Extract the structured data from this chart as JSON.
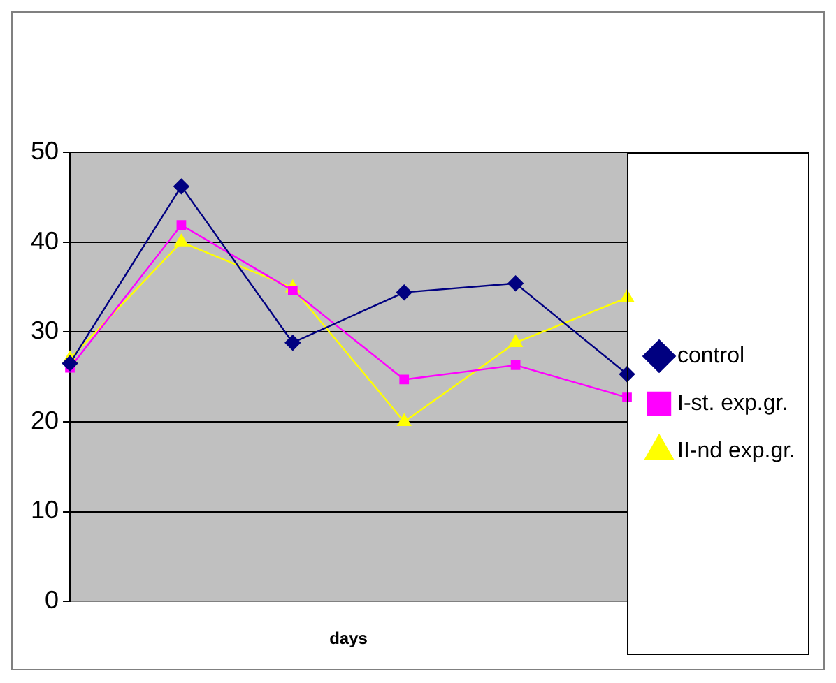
{
  "chart_data": {
    "type": "line",
    "xlabel": "days",
    "categories": [
      null,
      null,
      null,
      null,
      null,
      null
    ],
    "series": [
      {
        "name": "control",
        "color": "#000080",
        "marker": "diamond",
        "values": [
          26.5,
          46.2,
          28.8,
          34.4,
          35.4,
          25.3
        ]
      },
      {
        "name": "I-st. exp.gr.",
        "color": "#ff00ff",
        "marker": "square",
        "values": [
          26,
          41.9,
          34.6,
          24.7,
          26.3,
          22.7
        ]
      },
      {
        "name": "II-nd exp.gr.",
        "color": "#ffff00",
        "marker": "triangle",
        "values": [
          27,
          40,
          34.9,
          20,
          28.8,
          33.8
        ]
      }
    ],
    "ylim": [
      0,
      50
    ],
    "yticks": [
      0,
      10,
      20,
      30,
      40,
      50
    ],
    "grid": "y",
    "legend": "right"
  }
}
